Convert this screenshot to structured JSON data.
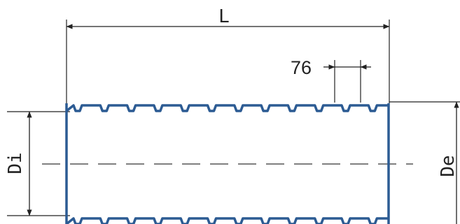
{
  "labels": {
    "length": "L",
    "pitch": "76",
    "inner_diameter": "Di",
    "outer_diameter": "De"
  },
  "colors": {
    "pipe_outline": "#2c5b93",
    "dimension_lines": "#222222",
    "centerline": "#555555",
    "background": "#ffffff"
  }
}
